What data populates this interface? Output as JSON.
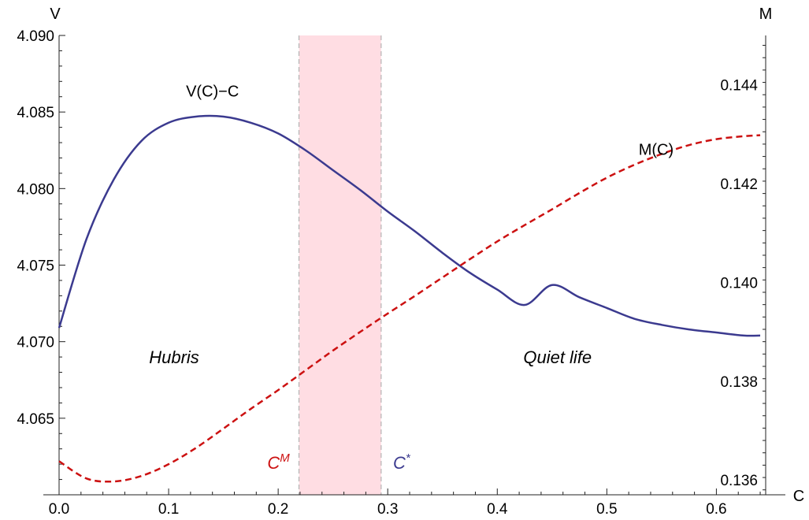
{
  "chart_data": {
    "type": "line",
    "x_axis": {
      "label": "C",
      "range": [
        0,
        0.645
      ],
      "ticks": [
        0.0,
        0.1,
        0.2,
        0.3,
        0.4,
        0.5,
        0.6
      ],
      "tick_labels": [
        "0.0",
        "0.1",
        "0.2",
        "0.3",
        "0.4",
        "0.5",
        "0.6"
      ]
    },
    "y_left_axis": {
      "label": "V",
      "range": [
        4.06,
        4.09
      ],
      "ticks": [
        4.065,
        4.07,
        4.075,
        4.08,
        4.085,
        4.09
      ],
      "tick_labels": [
        "4.065",
        "4.070",
        "4.075",
        "4.080",
        "4.085",
        "4.090"
      ]
    },
    "y_right_axis": {
      "label": "M",
      "range": [
        0.1357,
        0.145
      ],
      "ticks": [
        0.136,
        0.138,
        0.14,
        0.142,
        0.144
      ],
      "tick_labels": [
        "0.136",
        "0.138",
        "0.140",
        "0.142",
        "0.144"
      ]
    },
    "series": [
      {
        "name": "V(C)−C",
        "axis": "left",
        "color": "#3b3a8f",
        "style": "solid",
        "x": [
          0.0,
          0.025,
          0.05,
          0.075,
          0.1,
          0.125,
          0.15,
          0.175,
          0.2,
          0.225,
          0.25,
          0.275,
          0.3,
          0.325,
          0.35,
          0.375,
          0.4,
          0.425,
          0.45,
          0.475,
          0.5,
          0.525,
          0.55,
          0.575,
          0.6,
          0.625,
          0.64
        ],
        "y": [
          4.0709,
          4.0767,
          4.0806,
          4.0831,
          4.0843,
          4.0847,
          4.0847,
          4.0843,
          4.0836,
          4.0825,
          4.0812,
          4.0799,
          4.0785,
          4.0772,
          4.0758,
          4.0745,
          4.0734,
          4.0724,
          4.0737,
          4.0729,
          4.0722,
          4.0715,
          4.0711,
          4.0708,
          4.0706,
          4.0704,
          4.0704
        ]
      },
      {
        "name": "M(C)",
        "axis": "right",
        "color": "#cc1111",
        "style": "dashed",
        "x": [
          0.0,
          0.025,
          0.05,
          0.075,
          0.1,
          0.125,
          0.15,
          0.175,
          0.2,
          0.225,
          0.25,
          0.275,
          0.3,
          0.325,
          0.35,
          0.375,
          0.4,
          0.425,
          0.45,
          0.475,
          0.5,
          0.525,
          0.55,
          0.575,
          0.6,
          0.625,
          0.64
        ],
        "y": [
          0.13638,
          0.13603,
          0.13597,
          0.13608,
          0.13632,
          0.13665,
          0.13704,
          0.13744,
          0.13782,
          0.13822,
          0.13862,
          0.139,
          0.13937,
          0.13973,
          0.1401,
          0.14047,
          0.14083,
          0.14116,
          0.14148,
          0.14181,
          0.14212,
          0.14238,
          0.1426,
          0.14278,
          0.1429,
          0.14296,
          0.14298
        ]
      }
    ],
    "series_labels": [
      {
        "text": "V(C)−C",
        "x": 0.14,
        "y_left": 4.086
      },
      {
        "text": "M(C)",
        "x": 0.545,
        "y_left": 4.0822
      }
    ],
    "shaded_region": {
      "x_start": 0.219,
      "x_end": 0.294,
      "color": "#ffdde3"
    },
    "vertical_markers": [
      {
        "x": 0.219,
        "label": "C",
        "superscript": "M",
        "color": "#cc1111"
      },
      {
        "x": 0.294,
        "label": "C",
        "superscript": "*",
        "color": "#3b3a8f"
      }
    ],
    "region_labels": [
      {
        "text": "Hubris",
        "x": 0.105,
        "y_left": 4.0686
      },
      {
        "text": "Quiet life",
        "x": 0.455,
        "y_left": 4.0686
      }
    ],
    "grid": false
  }
}
